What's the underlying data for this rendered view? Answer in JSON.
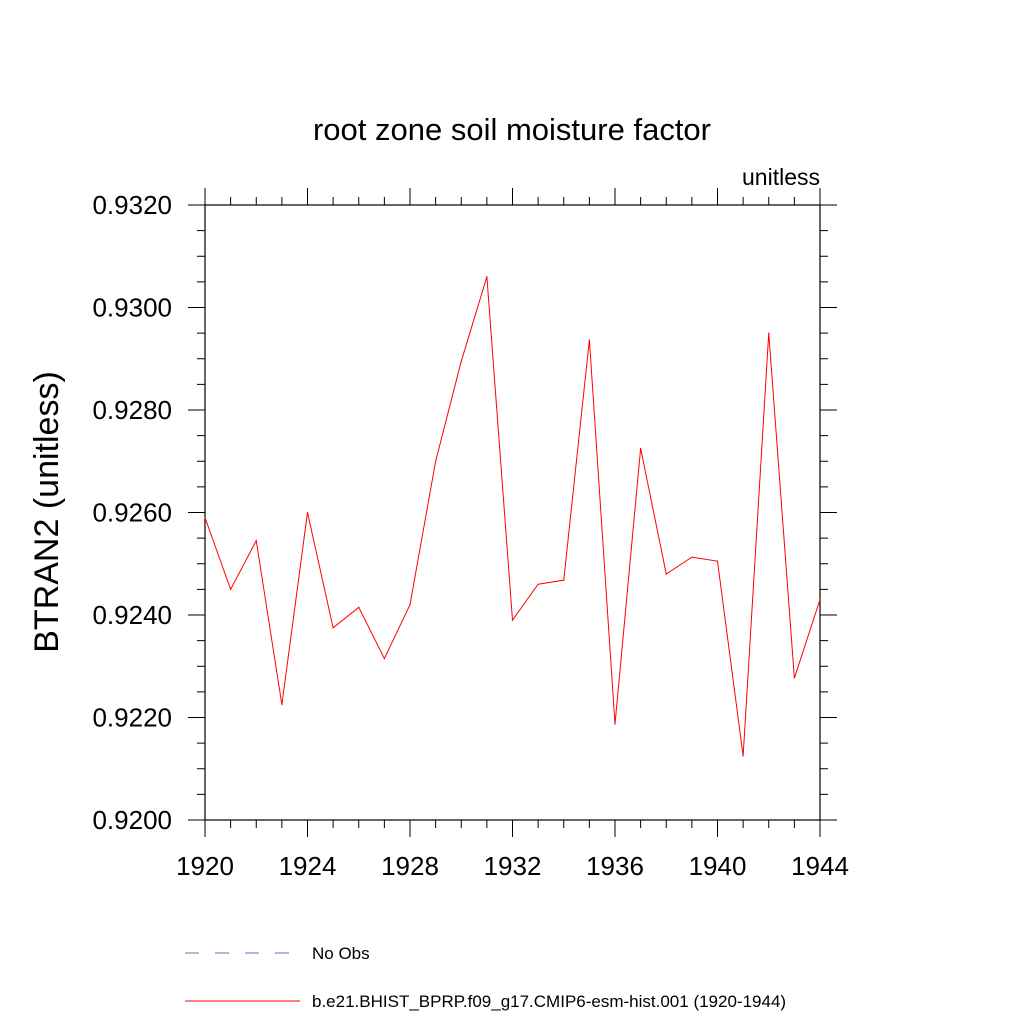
{
  "chart_data": {
    "type": "line",
    "title": "root zone soil moisture factor",
    "units_label": "unitless",
    "xlabel": "",
    "ylabel": "BTRAN2  (unitless)",
    "xlim": [
      1920,
      1944
    ],
    "ylim": [
      0.92,
      0.932
    ],
    "x_ticks": [
      1920,
      1924,
      1928,
      1932,
      1936,
      1940,
      1944
    ],
    "x_tick_labels": [
      "1920",
      "1924",
      "1928",
      "1932",
      "1936",
      "1940",
      "1944"
    ],
    "y_ticks": [
      0.92,
      0.922,
      0.924,
      0.926,
      0.928,
      0.93,
      0.932
    ],
    "y_tick_labels": [
      "0.9200",
      "0.9220",
      "0.9240",
      "0.9260",
      "0.9280",
      "0.9300",
      "0.9320"
    ],
    "series": [
      {
        "name": "b.e21.BHIST_BPRP.f09_g17.CMIP6-esm-hist.001 (1920-1944)",
        "color": "#ff0000",
        "x": [
          1920,
          1921,
          1922,
          1923,
          1924,
          1925,
          1926,
          1927,
          1928,
          1929,
          1930,
          1931,
          1932,
          1933,
          1934,
          1935,
          1936,
          1937,
          1938,
          1939,
          1940,
          1941,
          1942,
          1943,
          1944
        ],
        "values": [
          0.9259,
          0.9245,
          0.92545,
          0.92225,
          0.926,
          0.92375,
          0.92415,
          0.92315,
          0.9242,
          0.927,
          0.92895,
          0.9306,
          0.9239,
          0.9246,
          0.92468,
          0.92937,
          0.92187,
          0.92725,
          0.9248,
          0.92513,
          0.92505,
          0.92125,
          0.9295,
          0.92277,
          0.9243
        ]
      }
    ],
    "legend": [
      {
        "label": "No Obs",
        "style": "dashed",
        "color": "#6a6ab8"
      },
      {
        "label": "b.e21.BHIST_BPRP.f09_g17.CMIP6-esm-hist.001 (1920-1944)",
        "style": "solid",
        "color": "#ff0000"
      }
    ],
    "legend_position": "bottom"
  }
}
